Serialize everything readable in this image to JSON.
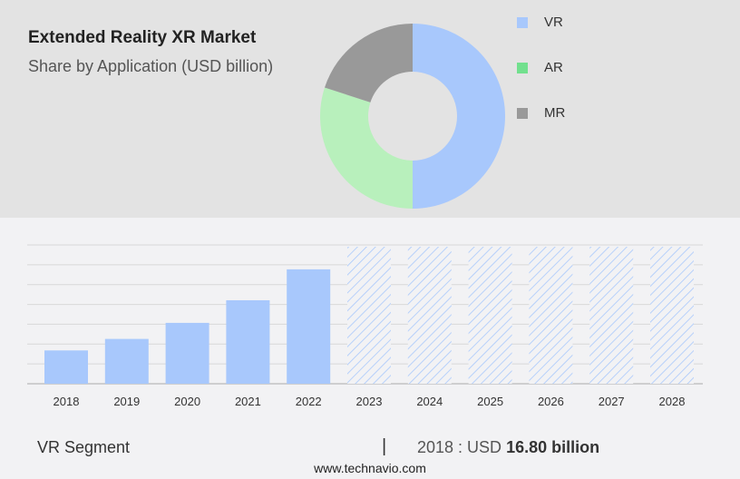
{
  "header": {
    "title": "Extended Reality XR Market",
    "subtitle": "Share by Application (USD billion)"
  },
  "chart_data": [
    {
      "type": "pie",
      "variant": "donut",
      "categories": [
        "VR",
        "AR",
        "MR"
      ],
      "values": [
        50,
        30,
        20
      ],
      "colors": [
        "#a8c8fc",
        "#b8f0bc",
        "#999999"
      ],
      "legend_colors": [
        "#a8c8fc",
        "#72e08e",
        "#999999"
      ],
      "legend_position": "right"
    },
    {
      "type": "bar",
      "categories": [
        "2018",
        "2019",
        "2020",
        "2021",
        "2022",
        "2023",
        "2024",
        "2025",
        "2026",
        "2027",
        "2028"
      ],
      "values": [
        16.8,
        22.6,
        30.7,
        42.1,
        57.7,
        null,
        null,
        null,
        null,
        null,
        null
      ],
      "forecast_categories": [
        "2023",
        "2024",
        "2025",
        "2026",
        "2027",
        "2028"
      ],
      "ylim": [
        0,
        70
      ],
      "grid": true,
      "bar_color": "#a8c8fc",
      "forecast_style": "hatched"
    }
  ],
  "footer": {
    "segment": "VR Segment",
    "separator": "|",
    "year_prefix": "2018 : USD",
    "value": "16.80 billion",
    "site": "www.technavio.com"
  }
}
